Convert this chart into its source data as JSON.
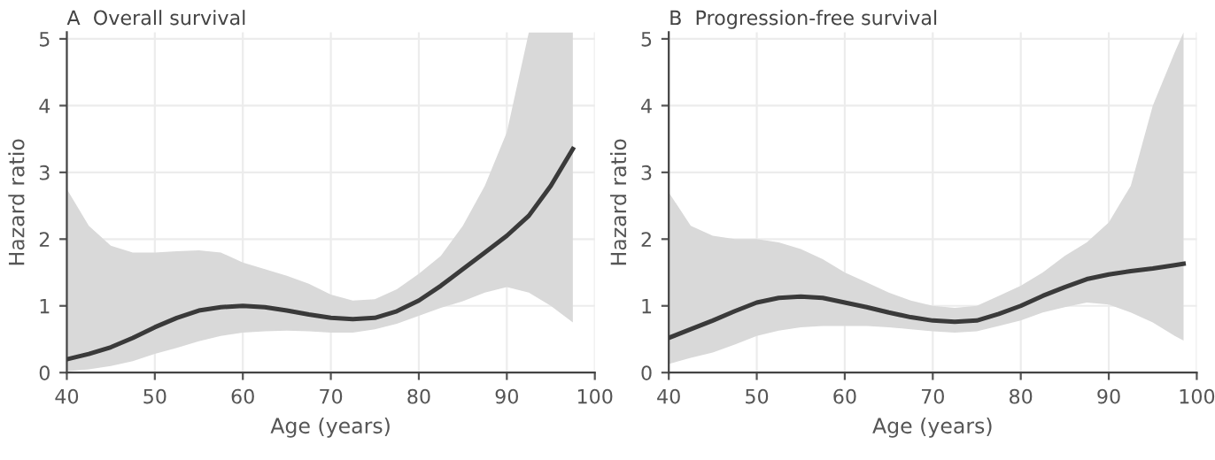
{
  "chart_data": [
    {
      "type": "line",
      "title": "A  Overall survival",
      "xlabel": "Age (years)",
      "ylabel": "Hazard ratio",
      "xlim": [
        40,
        100
      ],
      "xticks": [
        40,
        50,
        60,
        70,
        80,
        90,
        100
      ],
      "ylim": [
        0,
        5.1
      ],
      "yticks": [
        0,
        1,
        2,
        3,
        4,
        5
      ],
      "grid": true,
      "series": [
        {
          "color": "#3a3a3a",
          "x": [
            40,
            42.5,
            45,
            47.5,
            50,
            52.5,
            55,
            57.5,
            60,
            62.5,
            65,
            67.5,
            70,
            72.5,
            75,
            77.5,
            80,
            82.5,
            85,
            87.5,
            90,
            92.5,
            95,
            97.5
          ],
          "values": [
            0.2,
            0.28,
            0.38,
            0.52,
            0.68,
            0.82,
            0.93,
            0.98,
            1.0,
            0.98,
            0.93,
            0.87,
            0.82,
            0.8,
            0.82,
            0.92,
            1.08,
            1.3,
            1.55,
            1.8,
            2.05,
            2.35,
            2.8,
            3.35
          ],
          "lower": [
            0.02,
            0.05,
            0.1,
            0.17,
            0.28,
            0.37,
            0.47,
            0.55,
            0.6,
            0.62,
            0.63,
            0.62,
            0.6,
            0.6,
            0.65,
            0.73,
            0.85,
            0.97,
            1.07,
            1.2,
            1.28,
            1.2,
            1.0,
            0.75
          ],
          "upper": [
            2.75,
            2.2,
            1.9,
            1.8,
            1.8,
            1.82,
            1.83,
            1.8,
            1.65,
            1.55,
            1.45,
            1.33,
            1.17,
            1.08,
            1.1,
            1.25,
            1.48,
            1.75,
            2.2,
            2.8,
            3.6,
            5.1,
            5.1,
            5.1
          ]
        }
      ]
    },
    {
      "type": "line",
      "title": "B  Progression-free survival",
      "xlabel": "Age (years)",
      "ylabel": "Hazard ratio",
      "xlim": [
        40,
        100
      ],
      "xticks": [
        40,
        50,
        60,
        70,
        80,
        90,
        100
      ],
      "ylim": [
        0,
        5.1
      ],
      "yticks": [
        0,
        1,
        2,
        3,
        4,
        5
      ],
      "grid": true,
      "series": [
        {
          "color": "#3a3a3a",
          "x": [
            40,
            42.5,
            45,
            47.5,
            50,
            52.5,
            55,
            57.5,
            60,
            62.5,
            65,
            67.5,
            70,
            72.5,
            75,
            77.5,
            80,
            82.5,
            85,
            87.5,
            90,
            92.5,
            95,
            97.5,
            98.5
          ],
          "values": [
            0.52,
            0.65,
            0.78,
            0.92,
            1.05,
            1.12,
            1.14,
            1.12,
            1.05,
            0.98,
            0.9,
            0.83,
            0.78,
            0.76,
            0.78,
            0.88,
            1.0,
            1.15,
            1.28,
            1.4,
            1.47,
            1.52,
            1.56,
            1.61,
            1.63
          ],
          "lower": [
            0.13,
            0.22,
            0.3,
            0.42,
            0.55,
            0.63,
            0.68,
            0.7,
            0.7,
            0.7,
            0.68,
            0.65,
            0.62,
            0.6,
            0.62,
            0.7,
            0.78,
            0.9,
            0.98,
            1.05,
            1.02,
            0.9,
            0.75,
            0.55,
            0.48
          ],
          "upper": [
            2.7,
            2.2,
            2.05,
            2.0,
            2.0,
            1.95,
            1.85,
            1.7,
            1.5,
            1.35,
            1.2,
            1.08,
            1.0,
            0.97,
            1.0,
            1.15,
            1.3,
            1.5,
            1.75,
            1.95,
            2.25,
            2.8,
            4.0,
            4.8,
            5.1
          ]
        }
      ]
    }
  ]
}
